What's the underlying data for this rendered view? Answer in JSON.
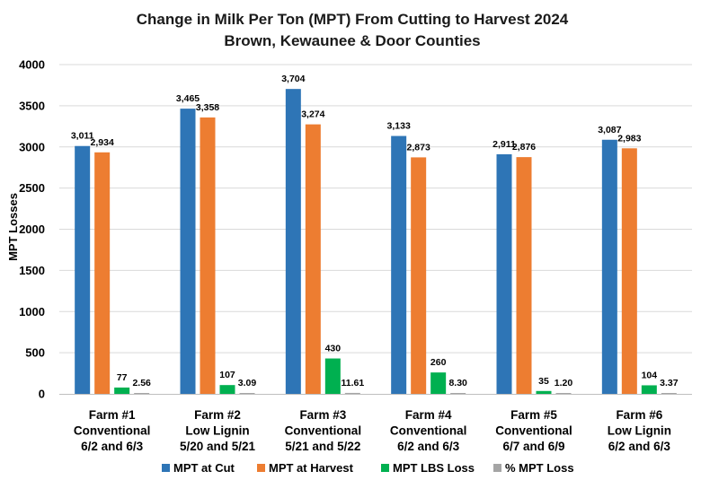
{
  "chart_data": {
    "type": "bar",
    "title": "Change in Milk Per Ton (MPT) From Cutting to Harvest 2024",
    "subtitle": "Brown, Kewaunee & Door Counties",
    "ylabel": "MPT Losses",
    "xlabel": "",
    "ylim": [
      0,
      4000
    ],
    "yticks": [
      0,
      500,
      1000,
      1500,
      2000,
      2500,
      3000,
      3500,
      4000
    ],
    "grid": true,
    "legend": "bottom",
    "categories": [
      [
        "Farm #1",
        "Conventional",
        "6/2 and 6/3"
      ],
      [
        "Farm #2",
        "Low Lignin",
        "5/20 and 5/21"
      ],
      [
        "Farm #3",
        "Conventional",
        "5/21 and 5/22"
      ],
      [
        "Farm #4",
        "Conventional",
        "6/2 and 6/3"
      ],
      [
        "Farm #5",
        "Conventional",
        "6/7 and 6/9"
      ],
      [
        "Farm #6",
        "Low Lignin",
        "6/2 and 6/3"
      ]
    ],
    "series": [
      {
        "name": "MPT at Cut",
        "color": "#2E75B6",
        "values": [
          3011,
          3465,
          3704,
          3133,
          2911,
          3087
        ],
        "labels": [
          "3,011",
          "3,465",
          "3,704",
          "3,133",
          "2,911",
          "3,087"
        ]
      },
      {
        "name": "MPT at Harvest",
        "color": "#ED7D31",
        "values": [
          2934,
          3358,
          3274,
          2873,
          2876,
          2983
        ],
        "labels": [
          "2,934",
          "3,358",
          "3,274",
          "2,873",
          "2,876",
          "2,983"
        ]
      },
      {
        "name": "MPT LBS Loss",
        "color": "#00B050",
        "values": [
          77,
          107,
          430,
          260,
          35,
          104
        ],
        "labels": [
          "77",
          "107",
          "430",
          "260",
          "35",
          "104"
        ]
      },
      {
        "name": "% MPT Loss",
        "color": "#A5A5A5",
        "values": [
          2.56,
          3.09,
          11.61,
          8.3,
          1.2,
          3.37
        ],
        "labels": [
          "2.56",
          "3.09",
          "11.61",
          "8.30",
          "1.20",
          "3.37"
        ]
      }
    ]
  }
}
